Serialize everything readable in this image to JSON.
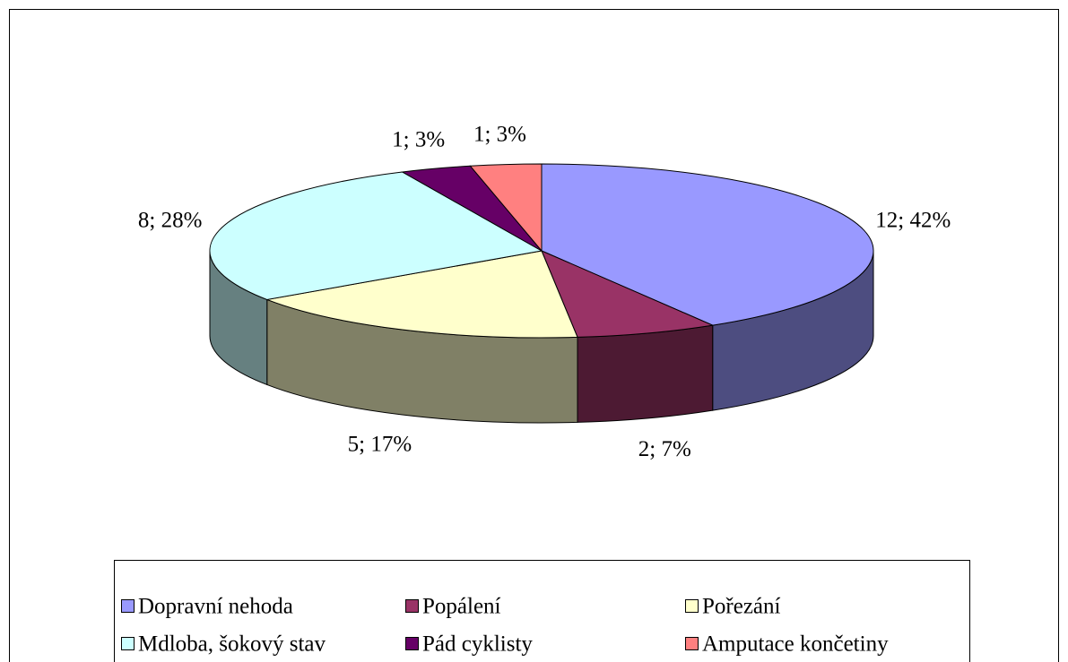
{
  "chart_data": {
    "type": "pie",
    "three_d": true,
    "categories": [
      "Dopravní nehoda",
      "Popálení",
      "Pořezání",
      "Mdloba, šokový stav",
      "Pád cyklisty",
      "Amputace končetiny"
    ],
    "values": [
      12,
      2,
      5,
      8,
      1,
      1
    ],
    "value_labels": [
      "12; 42%",
      "2; 7%",
      "5; 17%",
      "8; 28%",
      "1; 3%",
      "1; 3%"
    ],
    "colors": [
      "#9999ff",
      "#993366",
      "#ffffcc",
      "#ccffff",
      "#660066",
      "#ff8080"
    ],
    "legend": "bottom"
  }
}
